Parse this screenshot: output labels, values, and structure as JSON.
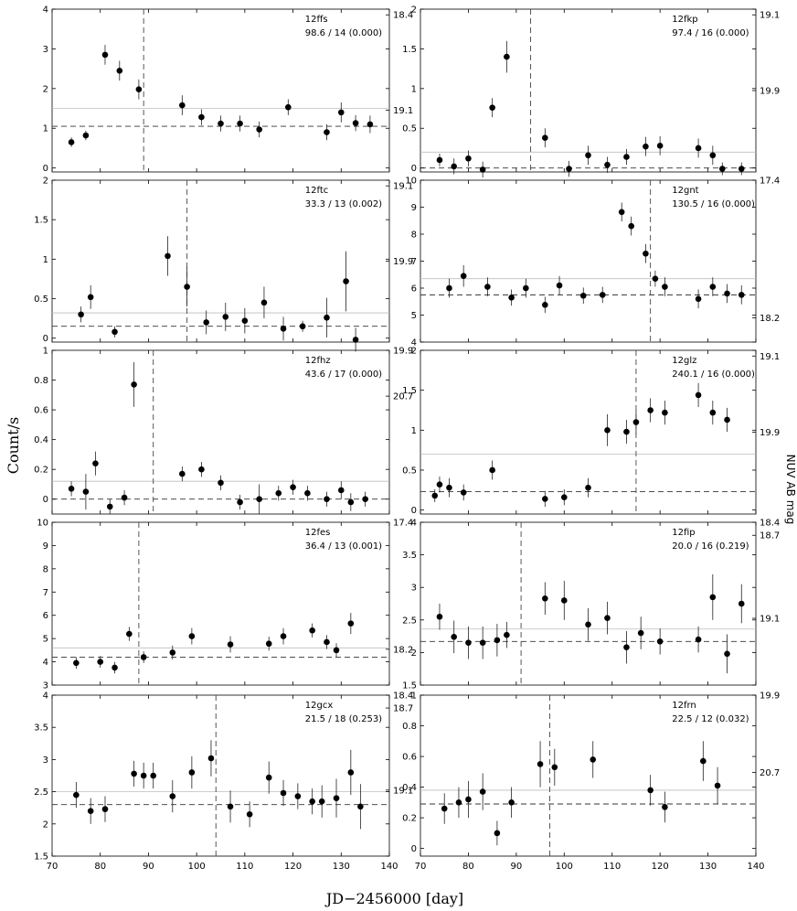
{
  "figure": {
    "xlabel": "JD−2456000 [day]",
    "ylabel": "Count/s",
    "right_label": "NUV AB mag",
    "x_ticks": [
      "70",
      "80",
      "90",
      "100",
      "110",
      "120",
      "130",
      "140"
    ]
  },
  "chart_data": [
    {
      "type": "scatter",
      "name": "12ffs",
      "stat": "98.6 / 14 (0.000)",
      "xlim": [
        70,
        140
      ],
      "ylim": [
        -0.1,
        4
      ],
      "yticks": [
        0,
        1,
        2,
        3,
        4
      ],
      "ytick_labels": [
        "0",
        "1",
        "2",
        "3",
        "4"
      ],
      "mag_labels": [
        "18.4",
        "19.1"
      ],
      "mean": 1.05,
      "upper": 1.5,
      "vline": 89,
      "x": [
        74,
        77,
        81,
        84,
        88,
        97,
        101,
        105,
        109,
        113,
        119,
        127,
        130,
        133,
        136
      ],
      "y": [
        0.65,
        0.82,
        2.85,
        2.45,
        1.98,
        1.58,
        1.28,
        1.12,
        1.12,
        0.97,
        1.53,
        0.9,
        1.4,
        1.13,
        1.1
      ],
      "err": [
        0.12,
        0.12,
        0.25,
        0.25,
        0.25,
        0.25,
        0.2,
        0.2,
        0.2,
        0.2,
        0.2,
        0.2,
        0.25,
        0.2,
        0.22
      ]
    },
    {
      "type": "scatter",
      "name": "12fkp",
      "stat": "97.4 / 16 (0.000)",
      "xlim": [
        70,
        140
      ],
      "ylim": [
        -0.05,
        2
      ],
      "yticks": [
        0,
        0.5,
        1,
        1.5,
        2
      ],
      "ytick_labels": [
        "0",
        "0.5",
        "1",
        "1.5",
        "2"
      ],
      "mag_labels": [
        "19.1",
        "19.9"
      ],
      "mean": 0.0,
      "upper": 0.2,
      "vline": 93,
      "x": [
        74,
        77,
        80,
        83,
        85,
        88,
        96,
        101,
        105,
        109,
        113,
        117,
        120,
        128,
        131,
        133,
        137
      ],
      "y": [
        0.1,
        0.02,
        0.12,
        -0.02,
        0.76,
        1.4,
        0.38,
        -0.01,
        0.16,
        0.04,
        0.14,
        0.27,
        0.28,
        0.25,
        0.16,
        -0.01,
        -0.01
      ],
      "err": [
        0.08,
        0.1,
        0.1,
        0.1,
        0.12,
        0.2,
        0.12,
        0.1,
        0.12,
        0.1,
        0.1,
        0.12,
        0.12,
        0.12,
        0.12,
        0.08,
        0.08
      ]
    },
    {
      "type": "scatter",
      "name": "12ftc",
      "stat": "33.3 / 13 (0.002)",
      "xlim": [
        70,
        140
      ],
      "ylim": [
        -0.05,
        2
      ],
      "yticks": [
        0,
        0.5,
        1,
        1.5,
        2
      ],
      "ytick_labels": [
        "0",
        "0.5",
        "1",
        "1.5",
        "2"
      ],
      "mag_labels": [
        "19.1",
        "19.9"
      ],
      "mean": 0.15,
      "upper": 0.32,
      "vline": 98,
      "x": [
        76,
        78,
        83,
        94,
        98,
        102,
        106,
        110,
        114,
        118,
        122,
        127,
        131,
        133
      ],
      "y": [
        0.3,
        0.52,
        0.08,
        1.04,
        0.65,
        0.2,
        0.27,
        0.22,
        0.45,
        0.12,
        0.15,
        0.26,
        0.72,
        -0.02
      ],
      "err": [
        0.1,
        0.15,
        0.07,
        0.25,
        0.25,
        0.15,
        0.18,
        0.16,
        0.2,
        0.15,
        0.07,
        0.25,
        0.38,
        0.15
      ]
    },
    {
      "type": "scatter",
      "name": "12gnt",
      "stat": "130.5 / 16 (0.000)",
      "xlim": [
        70,
        140
      ],
      "ylim": [
        4,
        10
      ],
      "yticks": [
        4,
        5,
        6,
        7,
        8,
        9,
        10
      ],
      "ytick_labels": [
        "4",
        "5",
        "6",
        "7",
        "8",
        "9",
        "10"
      ],
      "mag_labels": [
        "17.4",
        "18.2"
      ],
      "mean": 5.75,
      "upper": 6.35,
      "vline": 118,
      "x": [
        76,
        79,
        84,
        89,
        92,
        96,
        99,
        104,
        108,
        112,
        114,
        117,
        119,
        121,
        128,
        131,
        134,
        137
      ],
      "y": [
        6.0,
        6.45,
        6.05,
        5.65,
        6.0,
        5.38,
        6.1,
        5.72,
        5.75,
        8.82,
        8.3,
        7.28,
        6.35,
        6.05,
        5.6,
        6.05,
        5.8,
        5.75
      ],
      "err": [
        0.35,
        0.4,
        0.35,
        0.3,
        0.35,
        0.3,
        0.35,
        0.3,
        0.3,
        0.35,
        0.35,
        0.35,
        0.3,
        0.35,
        0.35,
        0.35,
        0.35,
        0.35
      ]
    },
    {
      "type": "scatter",
      "name": "12fhz",
      "stat": "43.6 / 17 (0.000)",
      "xlim": [
        70,
        140
      ],
      "ylim": [
        -0.1,
        1
      ],
      "yticks": [
        0,
        0.2,
        0.4,
        0.6,
        0.8,
        1
      ],
      "ytick_labels": [
        "0",
        "0.2",
        "0.4",
        "0.6",
        "0.8",
        "1"
      ],
      "mag_labels": [
        "19.9",
        "20.7"
      ],
      "mean": 0.0,
      "upper": 0.12,
      "vline": 91,
      "x": [
        74,
        77,
        79,
        82,
        85,
        87,
        97,
        101,
        105,
        109,
        113,
        117,
        120,
        123,
        127,
        130,
        132,
        135
      ],
      "y": [
        0.07,
        0.05,
        0.24,
        -0.05,
        0.01,
        0.77,
        0.17,
        0.2,
        0.11,
        -0.02,
        0.0,
        0.04,
        0.08,
        0.04,
        0.0,
        0.06,
        -0.02,
        0.0
      ],
      "err": [
        0.05,
        0.12,
        0.08,
        0.05,
        0.05,
        0.15,
        0.05,
        0.05,
        0.05,
        0.05,
        0.1,
        0.05,
        0.05,
        0.05,
        0.05,
        0.06,
        0.06,
        0.05
      ]
    },
    {
      "type": "scatter",
      "name": "12glz",
      "stat": "240.1 / 16 (0.000)",
      "xlim": [
        70,
        140
      ],
      "ylim": [
        -0.05,
        2
      ],
      "yticks": [
        0,
        0.5,
        1,
        1.5,
        2
      ],
      "ytick_labels": [
        "0",
        "0.5",
        "1",
        "1.5",
        "2"
      ],
      "mag_labels": [
        "19.1",
        "19.9"
      ],
      "mean": 0.23,
      "upper": 0.7,
      "vline": 115,
      "x": [
        73,
        74,
        76,
        79,
        85,
        96,
        100,
        105,
        109,
        113,
        115,
        118,
        121,
        128,
        131,
        134
      ],
      "y": [
        0.18,
        0.32,
        0.28,
        0.22,
        0.5,
        0.14,
        0.16,
        0.28,
        1.0,
        0.98,
        1.1,
        1.25,
        1.22,
        1.44,
        1.22,
        1.13
      ],
      "err": [
        0.08,
        0.1,
        0.12,
        0.1,
        0.12,
        0.1,
        0.1,
        0.12,
        0.2,
        0.15,
        0.15,
        0.15,
        0.15,
        0.15,
        0.15,
        0.15
      ]
    },
    {
      "type": "scatter",
      "name": "12fes",
      "stat": "36.4 / 13 (0.001)",
      "xlim": [
        70,
        140
      ],
      "ylim": [
        3,
        10
      ],
      "yticks": [
        3,
        4,
        5,
        6,
        7,
        8,
        9,
        10
      ],
      "ytick_labels": [
        "3",
        "4",
        "5",
        "6",
        "7",
        "8",
        "9",
        "10"
      ],
      "mag_labels": [
        "17.4",
        "18.2"
      ],
      "mean": 4.2,
      "upper": 4.6,
      "vline": 88,
      "x": [
        75,
        80,
        83,
        86,
        89,
        95,
        99,
        107,
        115,
        118,
        124,
        127,
        129,
        132
      ],
      "y": [
        3.95,
        4.0,
        3.75,
        5.2,
        4.2,
        4.4,
        5.1,
        4.75,
        4.78,
        5.1,
        5.35,
        4.85,
        4.5,
        5.65
      ],
      "err": [
        0.25,
        0.25,
        0.25,
        0.3,
        0.25,
        0.3,
        0.35,
        0.35,
        0.3,
        0.35,
        0.3,
        0.3,
        0.3,
        0.45
      ]
    },
    {
      "type": "scatter",
      "name": "12fip",
      "stat": "20.0 / 16 (0.219)",
      "xlim": [
        70,
        140
      ],
      "ylim": [
        1.5,
        4
      ],
      "yticks": [
        1.5,
        2,
        2.5,
        3,
        3.5,
        4
      ],
      "ytick_labels": [
        "1.5",
        "2",
        "2.5",
        "3",
        "3.5",
        "4"
      ],
      "mag_labels": [
        "18.4",
        "18.7",
        "19.1"
      ],
      "mean": 2.17,
      "upper": 2.36,
      "vline": 91,
      "x": [
        74,
        77,
        80,
        83,
        86,
        88,
        96,
        100,
        105,
        109,
        113,
        116,
        120,
        128,
        131,
        134,
        137
      ],
      "y": [
        2.55,
        2.24,
        2.15,
        2.15,
        2.19,
        2.27,
        2.83,
        2.8,
        2.43,
        2.53,
        2.08,
        2.3,
        2.17,
        2.2,
        2.85,
        1.98,
        2.75
      ],
      "err": [
        0.2,
        0.25,
        0.25,
        0.25,
        0.25,
        0.2,
        0.25,
        0.3,
        0.25,
        0.25,
        0.25,
        0.25,
        0.2,
        0.2,
        0.35,
        0.3,
        0.3
      ]
    },
    {
      "type": "scatter",
      "name": "12gcx",
      "stat": "21.5 / 18 (0.253)",
      "xlim": [
        70,
        140
      ],
      "ylim": [
        1.5,
        4
      ],
      "yticks": [
        1.5,
        2,
        2.5,
        3,
        3.5,
        4
      ],
      "ytick_labels": [
        "1.5",
        "2",
        "2.5",
        "3",
        "3.5",
        "4"
      ],
      "mag_labels": [
        "18.4",
        "18.7",
        "19.1"
      ],
      "mean": 2.3,
      "upper": 2.5,
      "vline": 104,
      "x": [
        75,
        78,
        81,
        87,
        89,
        91,
        95,
        99,
        103,
        107,
        111,
        115,
        118,
        121,
        124,
        126,
        129,
        132,
        134
      ],
      "y": [
        2.45,
        2.2,
        2.23,
        2.78,
        2.75,
        2.75,
        2.43,
        2.8,
        3.02,
        2.27,
        2.15,
        2.72,
        2.48,
        2.43,
        2.35,
        2.35,
        2.4,
        2.8,
        2.27
      ],
      "err": [
        0.2,
        0.2,
        0.2,
        0.2,
        0.2,
        0.2,
        0.25,
        0.25,
        0.28,
        0.25,
        0.2,
        0.25,
        0.2,
        0.2,
        0.2,
        0.25,
        0.3,
        0.35,
        0.35
      ]
    },
    {
      "type": "scatter",
      "name": "12frn",
      "stat": "22.5 / 12 (0.032)",
      "xlim": [
        70,
        140
      ],
      "ylim": [
        -0.05,
        1
      ],
      "yticks": [
        0,
        0.2,
        0.4,
        0.6,
        0.8,
        1
      ],
      "ytick_labels": [
        "0",
        "0.2",
        "0.4",
        "0.6",
        "0.8",
        "1"
      ],
      "mag_labels": [
        "19.9",
        "20.7"
      ],
      "mean": 0.29,
      "upper": 0.38,
      "vline": 97,
      "x": [
        75,
        78,
        80,
        83,
        86,
        89,
        95,
        98,
        106,
        118,
        121,
        129,
        132
      ],
      "y": [
        0.26,
        0.3,
        0.32,
        0.37,
        0.1,
        0.3,
        0.55,
        0.53,
        0.58,
        0.38,
        0.27,
        0.57,
        0.41
      ],
      "err": [
        0.1,
        0.1,
        0.12,
        0.12,
        0.08,
        0.1,
        0.15,
        0.12,
        0.12,
        0.1,
        0.1,
        0.13,
        0.12
      ]
    }
  ]
}
